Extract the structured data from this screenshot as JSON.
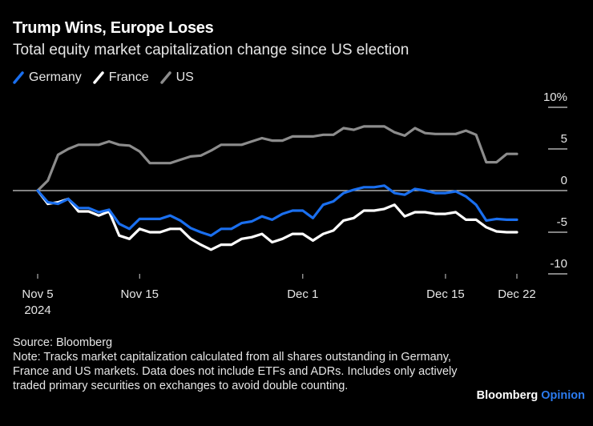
{
  "header": {
    "title": "Trump Wins, Europe Loses",
    "subtitle": "Total equity market capitalization change since US election"
  },
  "footer": {
    "source": "Source: Bloomberg",
    "note": "Note: Tracks market capitalization calculated from all shares outstanding in Germany, France and US markets. Data does not include ETFs and ADRs. Includes only actively traded primary securities on exchanges to avoid double counting.",
    "brand_main": "Bloomberg",
    "brand_accent": "Opinion"
  },
  "colors": {
    "Germany": "#1a6fef",
    "France": "#ffffff",
    "US": "#8c8c8c",
    "background": "#000000",
    "brand_accent": "#2b7bf0"
  },
  "chart_data": {
    "type": "line",
    "title": "Trump Wins, Europe Loses",
    "subtitle": "Total equity market capitalization change since US election",
    "xlabel": "",
    "ylabel": "%",
    "ylim": [
      -10,
      10
    ],
    "yticks": [
      10,
      5,
      0,
      -5,
      -10
    ],
    "ytick_labels": [
      "10%",
      "5",
      "0",
      "-5",
      "-10"
    ],
    "x_start": "2024-11-05",
    "x_days": 47,
    "xticks": [
      {
        "day": 0,
        "label": "Nov 5",
        "sublabel": "2024"
      },
      {
        "day": 10,
        "label": "Nov 15",
        "sublabel": ""
      },
      {
        "day": 26,
        "label": "Dec 1",
        "sublabel": ""
      },
      {
        "day": 40,
        "label": "Dec 15",
        "sublabel": ""
      },
      {
        "day": 47,
        "label": "Dec 22",
        "sublabel": ""
      }
    ],
    "legend": [
      "Germany",
      "France",
      "US"
    ],
    "legend_position": "top-left",
    "grid": false,
    "series": [
      {
        "name": "Germany",
        "values": [
          0,
          -1.4,
          -1.6,
          -1.0,
          -2.1,
          -2.1,
          -2.6,
          -2.3,
          -4.0,
          -4.6,
          -3.4,
          -3.4,
          -3.4,
          -3.0,
          -3.6,
          -4.5,
          -5.0,
          -5.4,
          -4.6,
          -4.6,
          -3.9,
          -3.7,
          -3.1,
          -3.5,
          -2.8,
          -2.4,
          -2.4,
          -3.3,
          -1.7,
          -1.3,
          -0.3,
          0.1,
          0.4,
          0.4,
          0.6,
          -0.3,
          -0.5,
          0.2,
          0.0,
          -0.3,
          -0.3,
          -0.1,
          -0.7,
          -1.7,
          -3.6,
          -3.4,
          -3.5,
          -3.5
        ]
      },
      {
        "name": "France",
        "values": [
          0,
          -1.6,
          -1.4,
          -1.0,
          -2.5,
          -2.5,
          -3.0,
          -2.5,
          -5.4,
          -5.8,
          -4.6,
          -5.0,
          -5.0,
          -4.6,
          -4.6,
          -5.8,
          -6.5,
          -7.1,
          -6.5,
          -6.5,
          -5.8,
          -5.6,
          -5.2,
          -6.2,
          -5.8,
          -5.2,
          -5.2,
          -6.0,
          -5.2,
          -4.8,
          -3.6,
          -3.3,
          -2.4,
          -2.4,
          -2.2,
          -1.7,
          -3.1,
          -2.6,
          -2.6,
          -2.8,
          -2.8,
          -2.6,
          -3.5,
          -3.5,
          -4.4,
          -4.9,
          -5.0,
          -5.0
        ]
      },
      {
        "name": "US",
        "values": [
          0,
          1.2,
          4.3,
          5.0,
          5.5,
          5.5,
          5.5,
          5.9,
          5.5,
          5.4,
          4.7,
          3.3,
          3.3,
          3.3,
          3.7,
          4.1,
          4.2,
          4.8,
          5.5,
          5.5,
          5.5,
          5.9,
          6.3,
          6.0,
          6.0,
          6.5,
          6.5,
          6.5,
          6.7,
          6.7,
          7.5,
          7.3,
          7.7,
          7.7,
          7.7,
          7.0,
          6.6,
          7.5,
          6.9,
          6.8,
          6.8,
          6.8,
          7.2,
          6.7,
          3.4,
          3.4,
          4.4,
          4.4
        ]
      }
    ]
  }
}
